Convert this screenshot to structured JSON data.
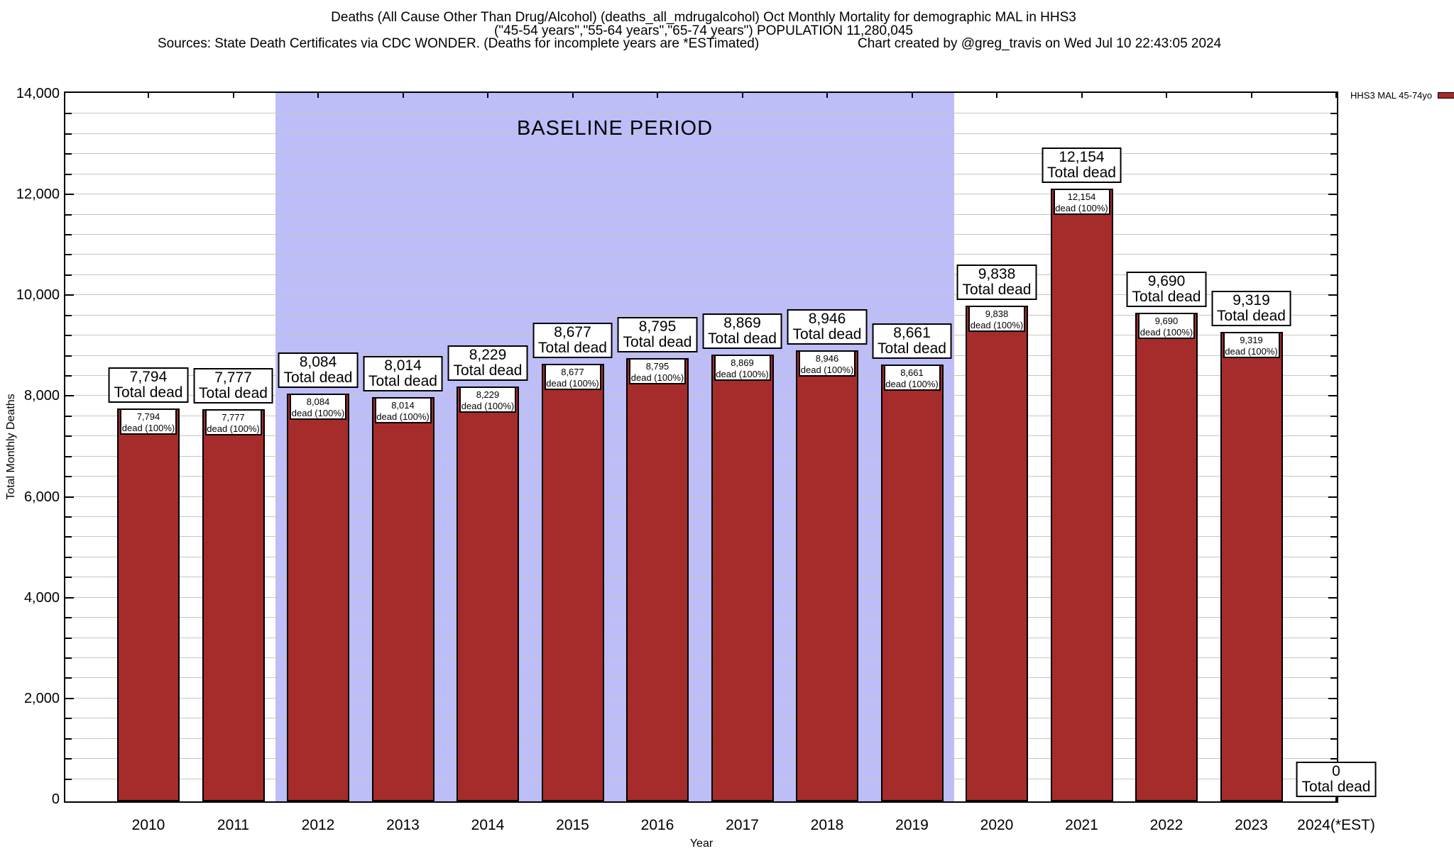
{
  "header": {
    "title_line1": "Deaths (All Cause Other Than Drug/Alcohol) (deaths_all_mdrugalcohol) Oct Monthly Mortality for demographic MAL in HHS3",
    "title_line2": "(\"45-54 years\",\"55-64 years\",\"65-74 years\") POPULATION 11,280,045",
    "sources_note": "Sources: State Death Certificates via CDC WONDER. (Deaths for incomplete years are *ESTimated)",
    "credit_note": "Chart created by @greg_travis on Wed Jul 10 22:43:05 2024"
  },
  "legend": {
    "series_label": "HHS3 MAL 45-74yo"
  },
  "chart_data": {
    "type": "bar",
    "xlabel": "Year",
    "ylabel": "Total Monthly Deaths",
    "ylim": [
      0,
      14000
    ],
    "ytick_interval": 2000,
    "minor_gridline_interval": 400,
    "grid": true,
    "legend_position": "top-right-outside",
    "yticks": [
      {
        "value": 0,
        "label": "0"
      },
      {
        "value": 2000,
        "label": "2,000"
      },
      {
        "value": 4000,
        "label": "4,000"
      },
      {
        "value": 6000,
        "label": "6,000"
      },
      {
        "value": 8000,
        "label": "8,000"
      },
      {
        "value": 10000,
        "label": "10,000"
      },
      {
        "value": 12000,
        "label": "12,000"
      },
      {
        "value": 14000,
        "label": "14,000"
      }
    ],
    "categories": [
      "2010",
      "2011",
      "2012",
      "2013",
      "2014",
      "2015",
      "2016",
      "2017",
      "2018",
      "2019",
      "2020",
      "2021",
      "2022",
      "2023",
      "2024(*EST)"
    ],
    "series": [
      {
        "name": "HHS3 MAL 45-74yo",
        "values": [
          7794,
          7777,
          8084,
          8014,
          8229,
          8677,
          8795,
          8869,
          8946,
          8661,
          9838,
          12154,
          9690,
          9319,
          0
        ]
      }
    ],
    "bars": [
      {
        "year": "2010",
        "value": 7794,
        "value_label": "7,794"
      },
      {
        "year": "2011",
        "value": 7777,
        "value_label": "7,777"
      },
      {
        "year": "2012",
        "value": 8084,
        "value_label": "8,084"
      },
      {
        "year": "2013",
        "value": 8014,
        "value_label": "8,014"
      },
      {
        "year": "2014",
        "value": 8229,
        "value_label": "8,229"
      },
      {
        "year": "2015",
        "value": 8677,
        "value_label": "8,677"
      },
      {
        "year": "2016",
        "value": 8795,
        "value_label": "8,795"
      },
      {
        "year": "2017",
        "value": 8869,
        "value_label": "8,869"
      },
      {
        "year": "2018",
        "value": 8946,
        "value_label": "8,946"
      },
      {
        "year": "2019",
        "value": 8661,
        "value_label": "8,661"
      },
      {
        "year": "2020",
        "value": 9838,
        "value_label": "9,838"
      },
      {
        "year": "2021",
        "value": 12154,
        "value_label": "12,154"
      },
      {
        "year": "2022",
        "value": 9690,
        "value_label": "9,690"
      },
      {
        "year": "2023",
        "value": 9319,
        "value_label": "9,319"
      },
      {
        "year": "2024(*EST)",
        "value": 0,
        "value_label": "0"
      }
    ],
    "outer_label_suffix": "Total dead",
    "inner_label_suffix": "dead (100%)",
    "annotations": {
      "baseline_band": {
        "label": "BASELINE PERIOD",
        "start_category": "2012",
        "end_category": "2019",
        "color": "#BDBDF8"
      }
    },
    "colors": {
      "bar_fill": "#A62B2B",
      "bar_border": "#000000",
      "band": "#BDBDF8",
      "gridline": "#C6C6BE",
      "axis": "#000000"
    }
  }
}
